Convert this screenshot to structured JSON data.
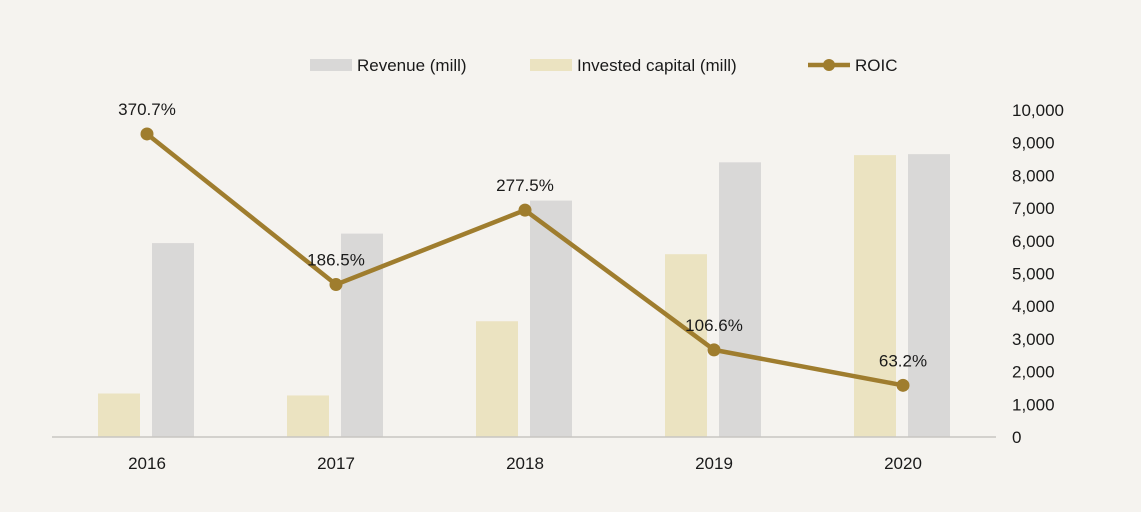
{
  "chart_data": {
    "type": "bar",
    "categories": [
      "2016",
      "2017",
      "2018",
      "2019",
      "2020"
    ],
    "series": [
      {
        "name": "Invested capital (mill)",
        "type": "bar",
        "color": "#ebe3c1",
        "values": [
          1330,
          1270,
          3540,
          5590,
          8620
        ]
      },
      {
        "name": "Revenue (mill)",
        "type": "bar",
        "color": "#d9d8d7",
        "values": [
          5930,
          6220,
          7230,
          8400,
          8650
        ]
      },
      {
        "name": "ROIC",
        "type": "line",
        "color": "#9f7d2e",
        "values": [
          370.7,
          186.5,
          277.5,
          106.6,
          63.2
        ],
        "labels": [
          "370.7%",
          "186.5%",
          "277.5%",
          "106.6%",
          "63.2%"
        ]
      }
    ],
    "y_right": {
      "ticks": [
        "0",
        "1,000",
        "2,000",
        "3,000",
        "4,000",
        "5,000",
        "6,000",
        "7,000",
        "8,000",
        "9,000",
        "10,000"
      ],
      "range": [
        0,
        10000
      ]
    },
    "roic_range": [
      0,
      400
    ],
    "legend": {
      "position": "top",
      "order": [
        "Revenue (mill)",
        "Invested capital (mill)",
        "ROIC"
      ]
    },
    "grid": false
  }
}
